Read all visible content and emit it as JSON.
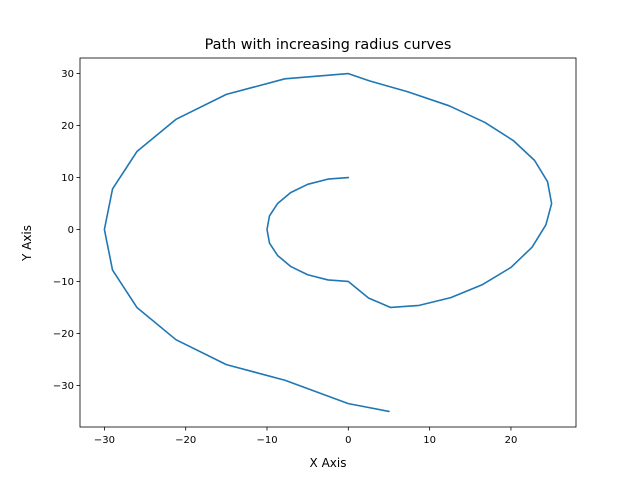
{
  "chart_data": {
    "type": "line",
    "title": "Path with increasing radius curves",
    "xlabel": "X Axis",
    "ylabel": "Y Axis",
    "xlim": [
      -33.0,
      28.0
    ],
    "ylim": [
      -38.0,
      33.0
    ],
    "xticks": [
      -30,
      -20,
      -10,
      0,
      10,
      20
    ],
    "yticks": [
      -30,
      -20,
      -10,
      0,
      10,
      20,
      30
    ],
    "xtick_labels": [
      "−30",
      "−20",
      "−10",
      "0",
      "10",
      "20"
    ],
    "ytick_labels": [
      "−30",
      "−20",
      "−10",
      "0",
      "10",
      "20",
      "30"
    ],
    "grid": false,
    "series": [
      {
        "color": "#1f77b4",
        "x": [
          0,
          -2.5,
          -5,
          -7.1,
          -8.7,
          -9.7,
          -10,
          -9.7,
          -8.7,
          -7.1,
          -5,
          -2.5,
          0,
          2.5,
          5.2,
          8.7,
          12.6,
          16.5,
          20,
          22.6,
          24.3,
          25,
          24.5,
          22.9,
          20.3,
          16.8,
          12.4,
          7.3,
          2.6,
          0,
          -7.8,
          -15,
          -21.2,
          -26,
          -29,
          -30,
          -29,
          -26,
          -21.2,
          -15,
          -7.8,
          0,
          5
        ],
        "y": [
          10,
          9.7,
          8.7,
          7.1,
          5,
          2.6,
          0,
          -2.6,
          -5,
          -7.1,
          -8.7,
          -9.7,
          -10,
          -13.2,
          -15,
          -14.6,
          -13.1,
          -10.6,
          -7.3,
          -3.4,
          0.9,
          5,
          9.2,
          13.3,
          17.1,
          20.6,
          23.8,
          26.5,
          28.6,
          30,
          29,
          26,
          21.2,
          15,
          7.8,
          0,
          -7.8,
          -15,
          -21.2,
          -26,
          -29,
          -33.5,
          -35
        ]
      }
    ]
  }
}
